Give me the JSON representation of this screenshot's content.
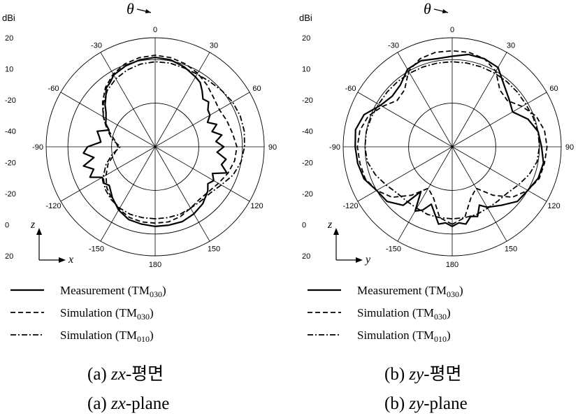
{
  "chart_data": [
    {
      "type": "polar-line",
      "caption_letter": "(a)",
      "caption_italic": "zx",
      "caption_ko_suffix": "-평면",
      "caption_en_suffix": "-plane",
      "unit": "dBi",
      "angle_symbol": "θ",
      "axis_h": "x",
      "axis_v": "z",
      "angle_ticks": [
        {
          "angle": 0,
          "label": "0"
        },
        {
          "angle": 30,
          "label": "30"
        },
        {
          "angle": 60,
          "label": "60"
        },
        {
          "angle": 90,
          "label": "90"
        },
        {
          "angle": 120,
          "label": "120"
        },
        {
          "angle": 150,
          "label": "150"
        },
        {
          "angle": 180,
          "label": "180"
        },
        {
          "angle": -150,
          "label": "-150"
        },
        {
          "angle": -120,
          "label": "-120"
        },
        {
          "angle": -90,
          "label": "-90"
        },
        {
          "angle": -60,
          "label": "-60"
        },
        {
          "angle": -30,
          "label": "-30"
        }
      ],
      "radial_tick_labels": [
        "20",
        "10",
        "-20",
        "-40",
        "-20",
        "-20",
        "0",
        "20"
      ],
      "radial_range_normalized": [
        0,
        1
      ],
      "grid_rings": [
        0.4,
        0.8,
        1.0
      ],
      "series": [
        {
          "name_main": "Measurement (TM",
          "name_sub": "030",
          "name_end": ")",
          "style": "solid",
          "angles": [
            -180,
            -170,
            -160,
            -150,
            -140,
            -130,
            -125,
            -120,
            -115,
            -110,
            -105,
            -100,
            -95,
            -90,
            -85,
            -80,
            -75,
            -70,
            -65,
            -60,
            -55,
            -50,
            -45,
            -40,
            -35,
            -30,
            -20,
            -10,
            0,
            10,
            20,
            30,
            35,
            40,
            45,
            50,
            55,
            60,
            65,
            70,
            75,
            80,
            85,
            90,
            95,
            100,
            105,
            110,
            115,
            120,
            125,
            130,
            140,
            150,
            160,
            170
          ],
          "r": [
            0.73,
            0.72,
            0.71,
            0.67,
            0.61,
            0.55,
            0.58,
            0.56,
            0.66,
            0.6,
            0.68,
            0.57,
            0.66,
            0.62,
            0.5,
            0.52,
            0.55,
            0.45,
            0.5,
            0.52,
            0.55,
            0.6,
            0.64,
            0.7,
            0.72,
            0.76,
            0.79,
            0.81,
            0.82,
            0.81,
            0.78,
            0.74,
            0.72,
            0.67,
            0.62,
            0.64,
            0.59,
            0.58,
            0.53,
            0.6,
            0.54,
            0.62,
            0.56,
            0.63,
            0.57,
            0.66,
            0.63,
            0.7,
            0.58,
            0.62,
            0.59,
            0.63,
            0.68,
            0.71,
            0.73,
            0.73
          ]
        },
        {
          "name_main": "Simulation (TM",
          "name_sub": "030",
          "name_end": ")",
          "style": "dashed",
          "angles": [
            -180,
            -170,
            -160,
            -150,
            -140,
            -130,
            -120,
            -110,
            -100,
            -90,
            -80,
            -70,
            -60,
            -50,
            -40,
            -30,
            -20,
            -10,
            0,
            10,
            20,
            30,
            40,
            50,
            60,
            70,
            80,
            90,
            100,
            110,
            120,
            130,
            140,
            150,
            160,
            170
          ],
          "r": [
            0.7,
            0.7,
            0.69,
            0.66,
            0.62,
            0.58,
            0.52,
            0.46,
            0.38,
            0.34,
            0.38,
            0.46,
            0.55,
            0.63,
            0.71,
            0.77,
            0.81,
            0.83,
            0.84,
            0.83,
            0.81,
            0.78,
            0.74,
            0.7,
            0.68,
            0.7,
            0.72,
            0.75,
            0.74,
            0.71,
            0.67,
            0.64,
            0.63,
            0.65,
            0.68,
            0.7
          ]
        },
        {
          "name_main": "Simulation (TM",
          "name_sub": "010",
          "name_end": ")",
          "style": "dashdot",
          "angles": [
            -180,
            -170,
            -160,
            -150,
            -140,
            -130,
            -120,
            -110,
            -100,
            -90,
            -80,
            -70,
            -60,
            -50,
            -40,
            -30,
            -20,
            -10,
            0,
            10,
            20,
            30,
            40,
            50,
            60,
            70,
            80,
            90,
            100,
            110,
            120,
            130,
            140,
            150,
            160,
            170
          ],
          "r": [
            0.66,
            0.66,
            0.66,
            0.65,
            0.63,
            0.6,
            0.55,
            0.48,
            0.4,
            0.32,
            0.4,
            0.47,
            0.55,
            0.62,
            0.68,
            0.72,
            0.75,
            0.77,
            0.78,
            0.78,
            0.77,
            0.77,
            0.78,
            0.8,
            0.82,
            0.83,
            0.83,
            0.82,
            0.8,
            0.76,
            0.7,
            0.66,
            0.65,
            0.65,
            0.66,
            0.66
          ]
        }
      ]
    },
    {
      "type": "polar-line",
      "caption_letter": "(b)",
      "caption_italic": "zy",
      "caption_ko_suffix": "-평면",
      "caption_en_suffix": "-plane",
      "unit": "dBi",
      "angle_symbol": "θ",
      "axis_h": "y",
      "axis_v": "z",
      "angle_ticks": [
        {
          "angle": 0,
          "label": "0"
        },
        {
          "angle": 30,
          "label": "30"
        },
        {
          "angle": 60,
          "label": "60"
        },
        {
          "angle": 90,
          "label": "90"
        },
        {
          "angle": 120,
          "label": "120"
        },
        {
          "angle": 150,
          "label": "150"
        },
        {
          "angle": 180,
          "label": "180"
        },
        {
          "angle": -150,
          "label": "-150"
        },
        {
          "angle": -120,
          "label": "-120"
        },
        {
          "angle": -90,
          "label": "-90"
        },
        {
          "angle": -60,
          "label": "-60"
        },
        {
          "angle": -30,
          "label": "-30"
        }
      ],
      "radial_tick_labels": [
        "20",
        "10",
        "-20",
        "-40",
        "-20",
        "-20",
        "0",
        "20"
      ],
      "radial_range_normalized": [
        0,
        1
      ],
      "grid_rings": [
        0.4,
        0.8,
        1.0
      ],
      "series": [
        {
          "name_main": "Measurement (TM",
          "name_sub": "030",
          "name_end": ")",
          "style": "solid",
          "angles": [
            -180,
            -175,
            -170,
            -160,
            -155,
            -150,
            -145,
            -140,
            -130,
            -120,
            -110,
            -100,
            -90,
            -80,
            -70,
            -60,
            -50,
            -40,
            -30,
            -20,
            -10,
            0,
            10,
            20,
            30,
            40,
            50,
            60,
            70,
            80,
            90,
            100,
            110,
            120,
            130,
            140,
            150,
            155,
            160,
            165,
            170,
            175
          ],
          "r": [
            0.73,
            0.7,
            0.72,
            0.56,
            0.64,
            0.68,
            0.5,
            0.7,
            0.78,
            0.8,
            0.86,
            0.88,
            0.89,
            0.9,
            0.86,
            0.76,
            0.72,
            0.74,
            0.82,
            0.84,
            0.82,
            0.83,
            0.86,
            0.86,
            0.84,
            0.74,
            0.68,
            0.64,
            0.74,
            0.8,
            0.82,
            0.85,
            0.84,
            0.8,
            0.78,
            0.7,
            0.64,
            0.59,
            0.68,
            0.66,
            0.72,
            0.7
          ]
        },
        {
          "name_main": "Simulation (TM",
          "name_sub": "030",
          "name_end": ")",
          "style": "dashed",
          "angles": [
            -180,
            -170,
            -160,
            -150,
            -140,
            -130,
            -120,
            -110,
            -100,
            -90,
            -80,
            -70,
            -60,
            -50,
            -40,
            -30,
            -20,
            -10,
            0,
            10,
            20,
            30,
            40,
            50,
            60,
            70,
            80,
            90,
            100,
            110,
            120,
            130,
            140,
            150,
            160,
            170
          ],
          "r": [
            0.71,
            0.66,
            0.5,
            0.44,
            0.58,
            0.72,
            0.8,
            0.85,
            0.86,
            0.87,
            0.86,
            0.82,
            0.74,
            0.66,
            0.68,
            0.8,
            0.86,
            0.88,
            0.88,
            0.88,
            0.86,
            0.8,
            0.68,
            0.66,
            0.74,
            0.82,
            0.86,
            0.87,
            0.86,
            0.85,
            0.8,
            0.72,
            0.58,
            0.44,
            0.5,
            0.66
          ]
        },
        {
          "name_main": "Simulation (TM",
          "name_sub": "010",
          "name_end": ")",
          "style": "dashdot",
          "angles": [
            -180,
            -170,
            -160,
            -150,
            -140,
            -130,
            -120,
            -110,
            -100,
            -90,
            -80,
            -70,
            -60,
            -50,
            -40,
            -30,
            -20,
            -10,
            0,
            10,
            20,
            30,
            40,
            50,
            60,
            70,
            80,
            90,
            100,
            110,
            120,
            130,
            140,
            150,
            160,
            170
          ],
          "r": [
            0.66,
            0.66,
            0.66,
            0.65,
            0.65,
            0.66,
            0.7,
            0.75,
            0.79,
            0.8,
            0.8,
            0.79,
            0.78,
            0.78,
            0.78,
            0.78,
            0.78,
            0.78,
            0.78,
            0.78,
            0.78,
            0.78,
            0.78,
            0.78,
            0.78,
            0.79,
            0.8,
            0.8,
            0.79,
            0.75,
            0.7,
            0.66,
            0.65,
            0.65,
            0.66,
            0.66
          ]
        }
      ]
    }
  ]
}
